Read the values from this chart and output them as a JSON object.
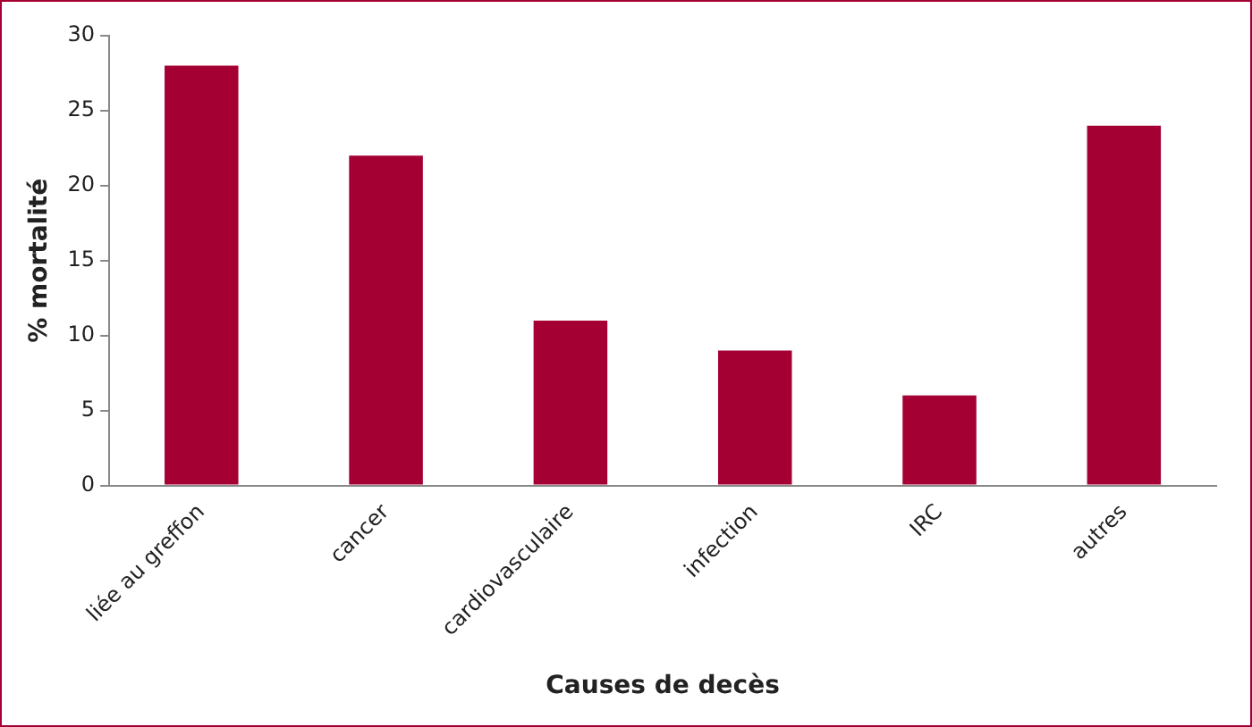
{
  "chart_data": {
    "type": "bar",
    "xlabel": "Causes de decès",
    "ylabel": "% mortalité",
    "categories": [
      "liée au greffon",
      "cancer",
      "cardiovasculaire",
      "infection",
      "IRC",
      "autres"
    ],
    "values": [
      28,
      22,
      11,
      9,
      6,
      24
    ],
    "color": "#a50034",
    "ylim": [
      0,
      30
    ],
    "yticks": [
      0,
      5,
      10,
      15,
      20,
      25,
      30
    ],
    "grid": false,
    "legend": false
  }
}
